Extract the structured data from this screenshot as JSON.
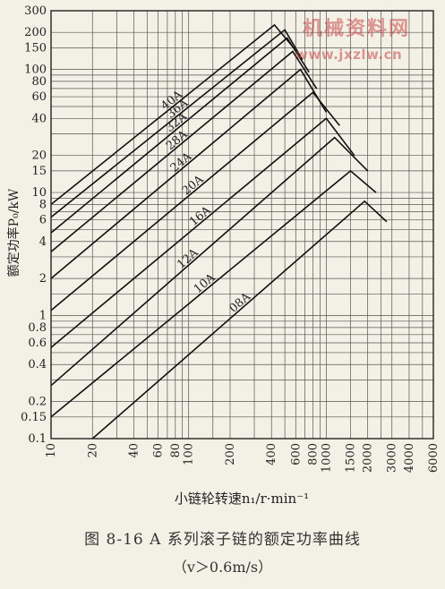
{
  "caption": {
    "title": "图 8-16   A 系列滚子链的额定功率曲线",
    "note": "（v＞0.6m/s）"
  },
  "watermark": {
    "text_cn": "机械资料网",
    "url": "www.jxzlw.cn"
  },
  "chart_data": {
    "type": "line",
    "title": "",
    "xlabel": "小链轮转速n₁/r·min⁻¹",
    "ylabel": "额定功率P₀/kW",
    "x_scale": "log",
    "y_scale": "log",
    "xlim": [
      10,
      6000
    ],
    "ylim": [
      0.1,
      300
    ],
    "grid": true,
    "x_ticks": [
      10,
      20,
      40,
      60,
      80,
      100,
      200,
      400,
      600,
      800,
      1000,
      1500,
      2000,
      3000,
      4000,
      6000
    ],
    "x_tick_labels": [
      "10",
      "20",
      "40",
      "60",
      "80",
      "100",
      "200",
      "400",
      "600",
      "800",
      "1000",
      "1500",
      "2000",
      "3000",
      "4000",
      "6000"
    ],
    "y_ticks": [
      0.1,
      0.15,
      0.2,
      0.4,
      0.6,
      0.8,
      1,
      2,
      4,
      6,
      8,
      10,
      15,
      20,
      40,
      60,
      80,
      100,
      150,
      200,
      300
    ],
    "y_tick_labels": [
      "0.1",
      "0.15",
      "0.2",
      "0.4",
      "0.6",
      "0.8",
      "1",
      "2",
      "4",
      "6",
      "8",
      "10",
      "15",
      "20",
      "40",
      "60",
      "80",
      "100",
      "150",
      "200",
      "300"
    ],
    "series": [
      {
        "name": "08A",
        "points": [
          [
            20,
            0.1
          ],
          [
            1900,
            8.5
          ],
          [
            2750,
            5.8
          ]
        ]
      },
      {
        "name": "10A",
        "points": [
          [
            10,
            0.15
          ],
          [
            1500,
            15
          ],
          [
            2300,
            10
          ]
        ]
      },
      {
        "name": "12A",
        "points": [
          [
            10,
            0.27
          ],
          [
            1150,
            28
          ],
          [
            2000,
            15
          ]
        ]
      },
      {
        "name": "16A",
        "points": [
          [
            10,
            0.55
          ],
          [
            1000,
            40
          ],
          [
            1600,
            20
          ]
        ]
      },
      {
        "name": "20A",
        "points": [
          [
            10,
            1.1
          ],
          [
            800,
            65
          ],
          [
            1250,
            35
          ]
        ]
      },
      {
        "name": "24A",
        "points": [
          [
            10,
            2.0
          ],
          [
            650,
            100
          ],
          [
            1000,
            45
          ]
        ]
      },
      {
        "name": "28A",
        "points": [
          [
            10,
            3.3
          ],
          [
            570,
            140
          ],
          [
            850,
            70
          ]
        ]
      },
      {
        "name": "32A",
        "points": [
          [
            10,
            4.7
          ],
          [
            520,
            180
          ],
          [
            750,
            95
          ]
        ]
      },
      {
        "name": "36A",
        "points": [
          [
            10,
            6.3
          ],
          [
            500,
            210
          ],
          [
            670,
            120
          ]
        ]
      },
      {
        "name": "40A",
        "points": [
          [
            10,
            8.0
          ],
          [
            420,
            230
          ],
          [
            580,
            150
          ]
        ]
      }
    ]
  }
}
